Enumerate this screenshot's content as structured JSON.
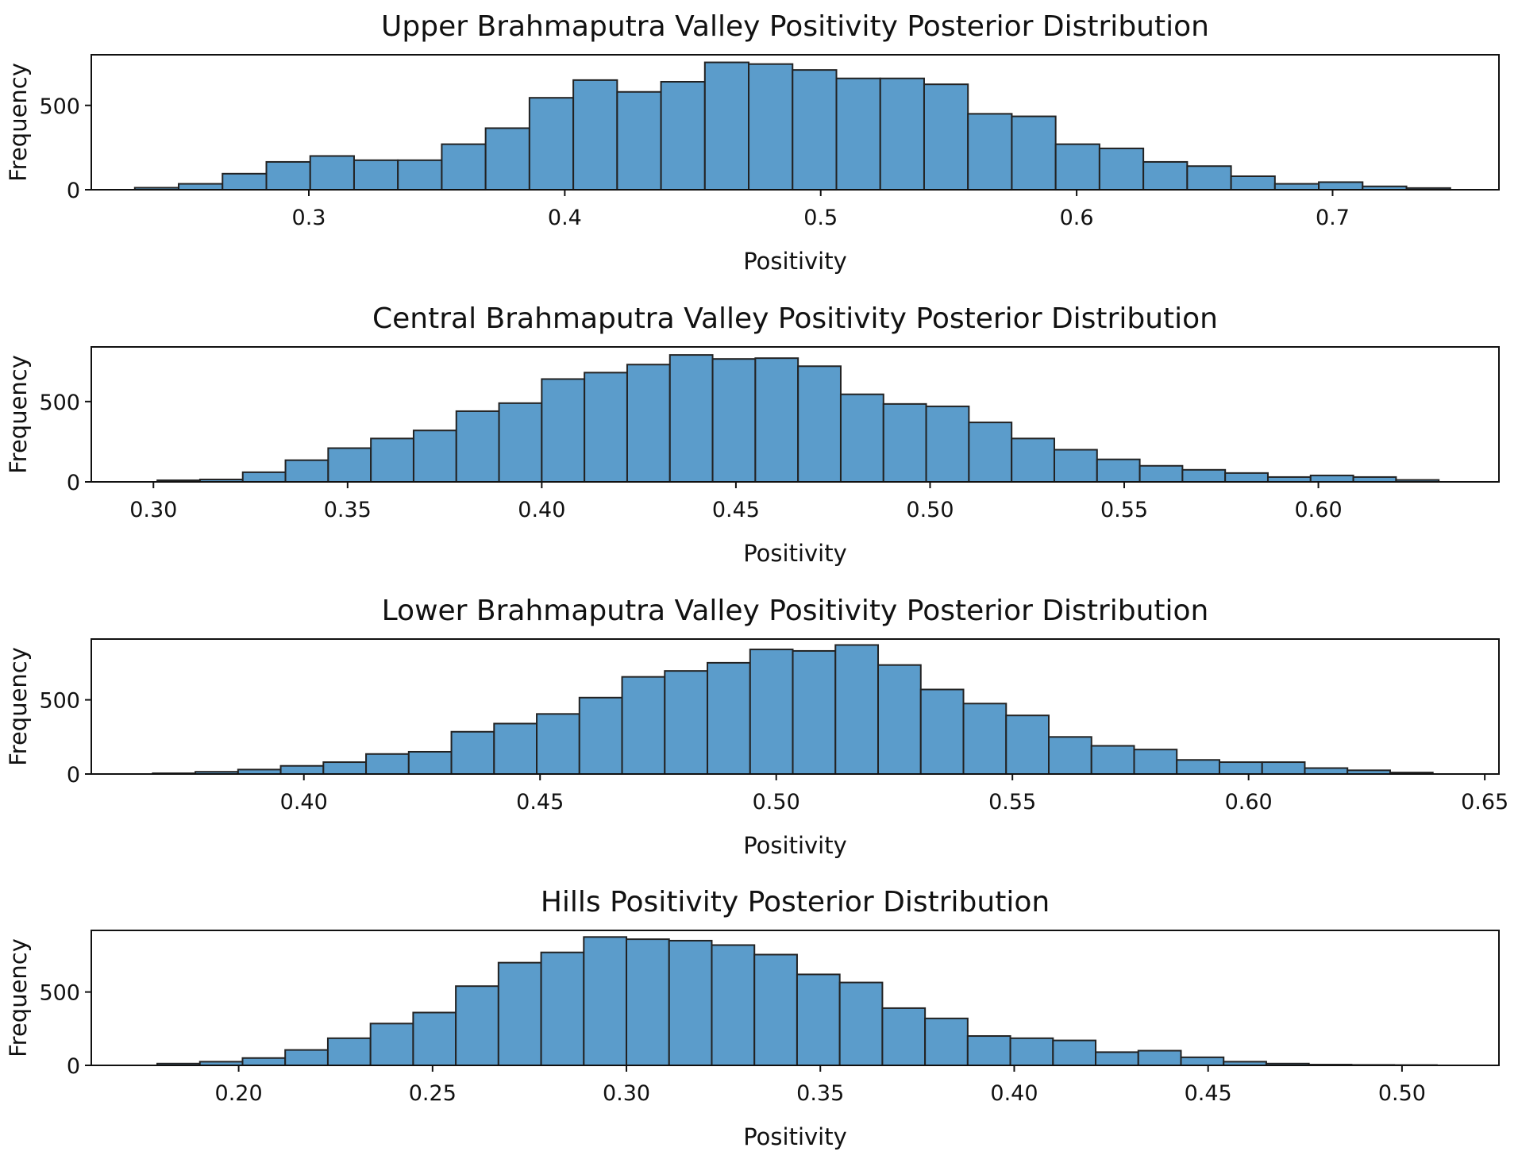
{
  "figure": {
    "bar_color": "#5B9CCB",
    "edge_color": "#222222"
  },
  "chart_data": [
    {
      "type": "bar",
      "title": "Upper Brahmaputra Valley Positivity Posterior Distribution",
      "xlabel": "Positivity",
      "ylabel": "Frequency",
      "xlim": [
        0.215,
        0.765
      ],
      "ylim": [
        0,
        800
      ],
      "x_ticks": [
        0.3,
        0.4,
        0.5,
        0.6,
        0.7
      ],
      "x_tick_labels": [
        "0.3",
        "0.4",
        "0.5",
        "0.6",
        "0.7"
      ],
      "y_ticks": [
        0,
        500
      ],
      "y_tick_labels": [
        "0",
        "500"
      ],
      "bin_start": 0.232,
      "bin_end": 0.746,
      "values": [
        12,
        35,
        95,
        165,
        200,
        175,
        175,
        270,
        365,
        545,
        650,
        580,
        640,
        755,
        745,
        710,
        660,
        660,
        625,
        450,
        435,
        270,
        245,
        165,
        140,
        80,
        35,
        45,
        20,
        10
      ]
    },
    {
      "type": "bar",
      "title": "Central Brahmaputra Valley Positivity Posterior Distribution",
      "xlabel": "Positivity",
      "ylabel": "Frequency",
      "xlim": [
        0.284,
        0.6465
      ],
      "ylim": [
        0,
        840
      ],
      "x_ticks": [
        0.3,
        0.35,
        0.4,
        0.45,
        0.5,
        0.55,
        0.6
      ],
      "x_tick_labels": [
        "0.30",
        "0.35",
        "0.40",
        "0.45",
        "0.50",
        "0.55",
        "0.60"
      ],
      "y_ticks": [
        0,
        500
      ],
      "y_tick_labels": [
        "0",
        "500"
      ],
      "bin_start": 0.301,
      "bin_end": 0.631,
      "values": [
        10,
        15,
        60,
        135,
        210,
        270,
        320,
        440,
        490,
        640,
        680,
        730,
        790,
        765,
        770,
        720,
        545,
        485,
        470,
        370,
        270,
        200,
        140,
        100,
        75,
        55,
        30,
        40,
        30,
        12
      ]
    },
    {
      "type": "bar",
      "title": "Lower Brahmaputra Valley Positivity Posterior Distribution",
      "xlabel": "Positivity",
      "ylabel": "Frequency",
      "xlim": [
        0.355,
        0.653
      ],
      "ylim": [
        0,
        910
      ],
      "x_ticks": [
        0.4,
        0.45,
        0.5,
        0.55,
        0.6,
        0.65
      ],
      "x_tick_labels": [
        "0.40",
        "0.45",
        "0.50",
        "0.55",
        "0.60",
        "0.65"
      ],
      "y_ticks": [
        0,
        500
      ],
      "y_tick_labels": [
        "0",
        "500"
      ],
      "bin_start": 0.368,
      "bin_end": 0.639,
      "values": [
        5,
        15,
        30,
        55,
        80,
        135,
        150,
        285,
        340,
        405,
        515,
        655,
        695,
        750,
        840,
        830,
        870,
        735,
        570,
        475,
        395,
        250,
        190,
        165,
        95,
        80,
        80,
        40,
        25,
        10
      ]
    },
    {
      "type": "bar",
      "title": "Hills Positivity Posterior Distribution",
      "xlabel": "Positivity",
      "ylabel": "Frequency",
      "xlim": [
        0.162,
        0.525
      ],
      "ylim": [
        0,
        920
      ],
      "x_ticks": [
        0.2,
        0.25,
        0.3,
        0.35,
        0.4,
        0.45,
        0.5
      ],
      "x_tick_labels": [
        "0.20",
        "0.25",
        "0.30",
        "0.35",
        "0.40",
        "0.45",
        "0.50"
      ],
      "y_ticks": [
        0,
        500
      ],
      "y_tick_labels": [
        "0",
        "500"
      ],
      "bin_start": 0.179,
      "bin_end": 0.509,
      "values": [
        12,
        25,
        50,
        105,
        185,
        285,
        360,
        540,
        700,
        770,
        875,
        860,
        850,
        820,
        755,
        620,
        565,
        390,
        320,
        200,
        185,
        170,
        90,
        100,
        55,
        25,
        12,
        5,
        3,
        2
      ]
    }
  ]
}
